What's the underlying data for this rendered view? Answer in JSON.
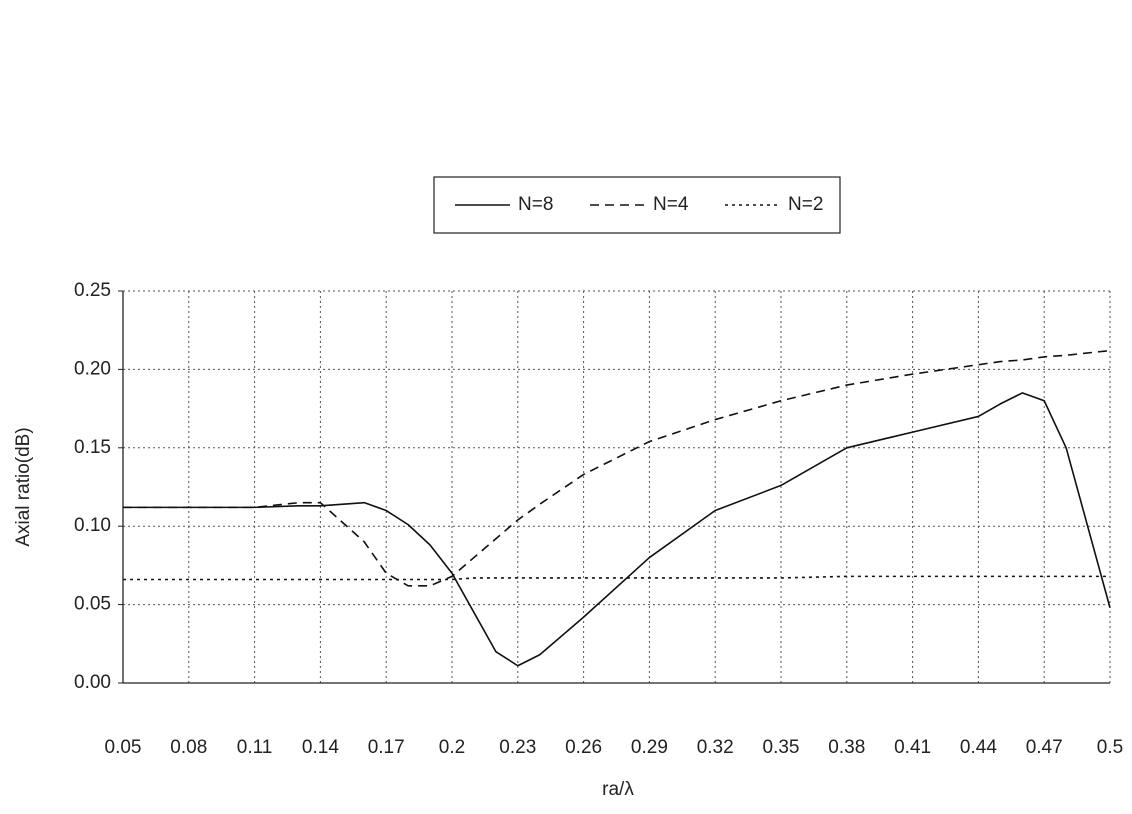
{
  "chart_data": {
    "type": "line",
    "xlabel": "ra/λ",
    "ylabel": "Axial ratio(dB)",
    "x": [
      0.05,
      0.08,
      0.11,
      0.13,
      0.14,
      0.16,
      0.17,
      0.18,
      0.19,
      0.2,
      0.21,
      0.22,
      0.23,
      0.24,
      0.26,
      0.29,
      0.32,
      0.35,
      0.38,
      0.41,
      0.44,
      0.45,
      0.46,
      0.47,
      0.48,
      0.5
    ],
    "series": [
      {
        "name": "N=8",
        "color": "#111111",
        "dash": "solid",
        "values": [
          0.112,
          0.112,
          0.112,
          0.113,
          0.113,
          0.115,
          0.11,
          0.101,
          0.088,
          0.07,
          0.045,
          0.02,
          0.011,
          0.018,
          0.042,
          0.08,
          0.11,
          0.126,
          0.15,
          0.16,
          0.17,
          0.178,
          0.185,
          0.18,
          0.15,
          0.048
        ]
      },
      {
        "name": "N=4",
        "color": "#111111",
        "dash": "dashed",
        "values": [
          0.112,
          0.112,
          0.112,
          0.115,
          0.115,
          0.09,
          0.07,
          0.062,
          0.062,
          0.068,
          0.08,
          0.092,
          0.104,
          0.114,
          0.133,
          0.154,
          0.168,
          0.18,
          0.19,
          0.197,
          0.203,
          0.205,
          0.206,
          0.208,
          0.209,
          0.212
        ]
      },
      {
        "name": "N=2",
        "color": "#111111",
        "dash": "dotted",
        "values": [
          0.066,
          0.066,
          0.066,
          0.066,
          0.066,
          0.066,
          0.066,
          0.066,
          0.066,
          0.066,
          0.067,
          0.067,
          0.067,
          0.067,
          0.067,
          0.067,
          0.067,
          0.067,
          0.068,
          0.068,
          0.068,
          0.068,
          0.068,
          0.068,
          0.068,
          0.068
        ]
      }
    ],
    "xlim": [
      0.05,
      0.5
    ],
    "xticks": [
      0.05,
      0.08,
      0.11,
      0.14,
      0.17,
      0.2,
      0.23,
      0.26,
      0.29,
      0.32,
      0.35,
      0.38,
      0.41,
      0.44,
      0.47,
      0.5
    ],
    "ylim": [
      0,
      0.25
    ],
    "yticks": [
      {
        "value": 0,
        "label": "0.00"
      },
      {
        "value": 0.05,
        "label": "0.05"
      },
      {
        "value": 0.1,
        "label": "0.10"
      },
      0.15,
      {
        "value": 0.2,
        "label": "0.20"
      },
      0.25
    ],
    "grid": true,
    "legend": "top"
  }
}
